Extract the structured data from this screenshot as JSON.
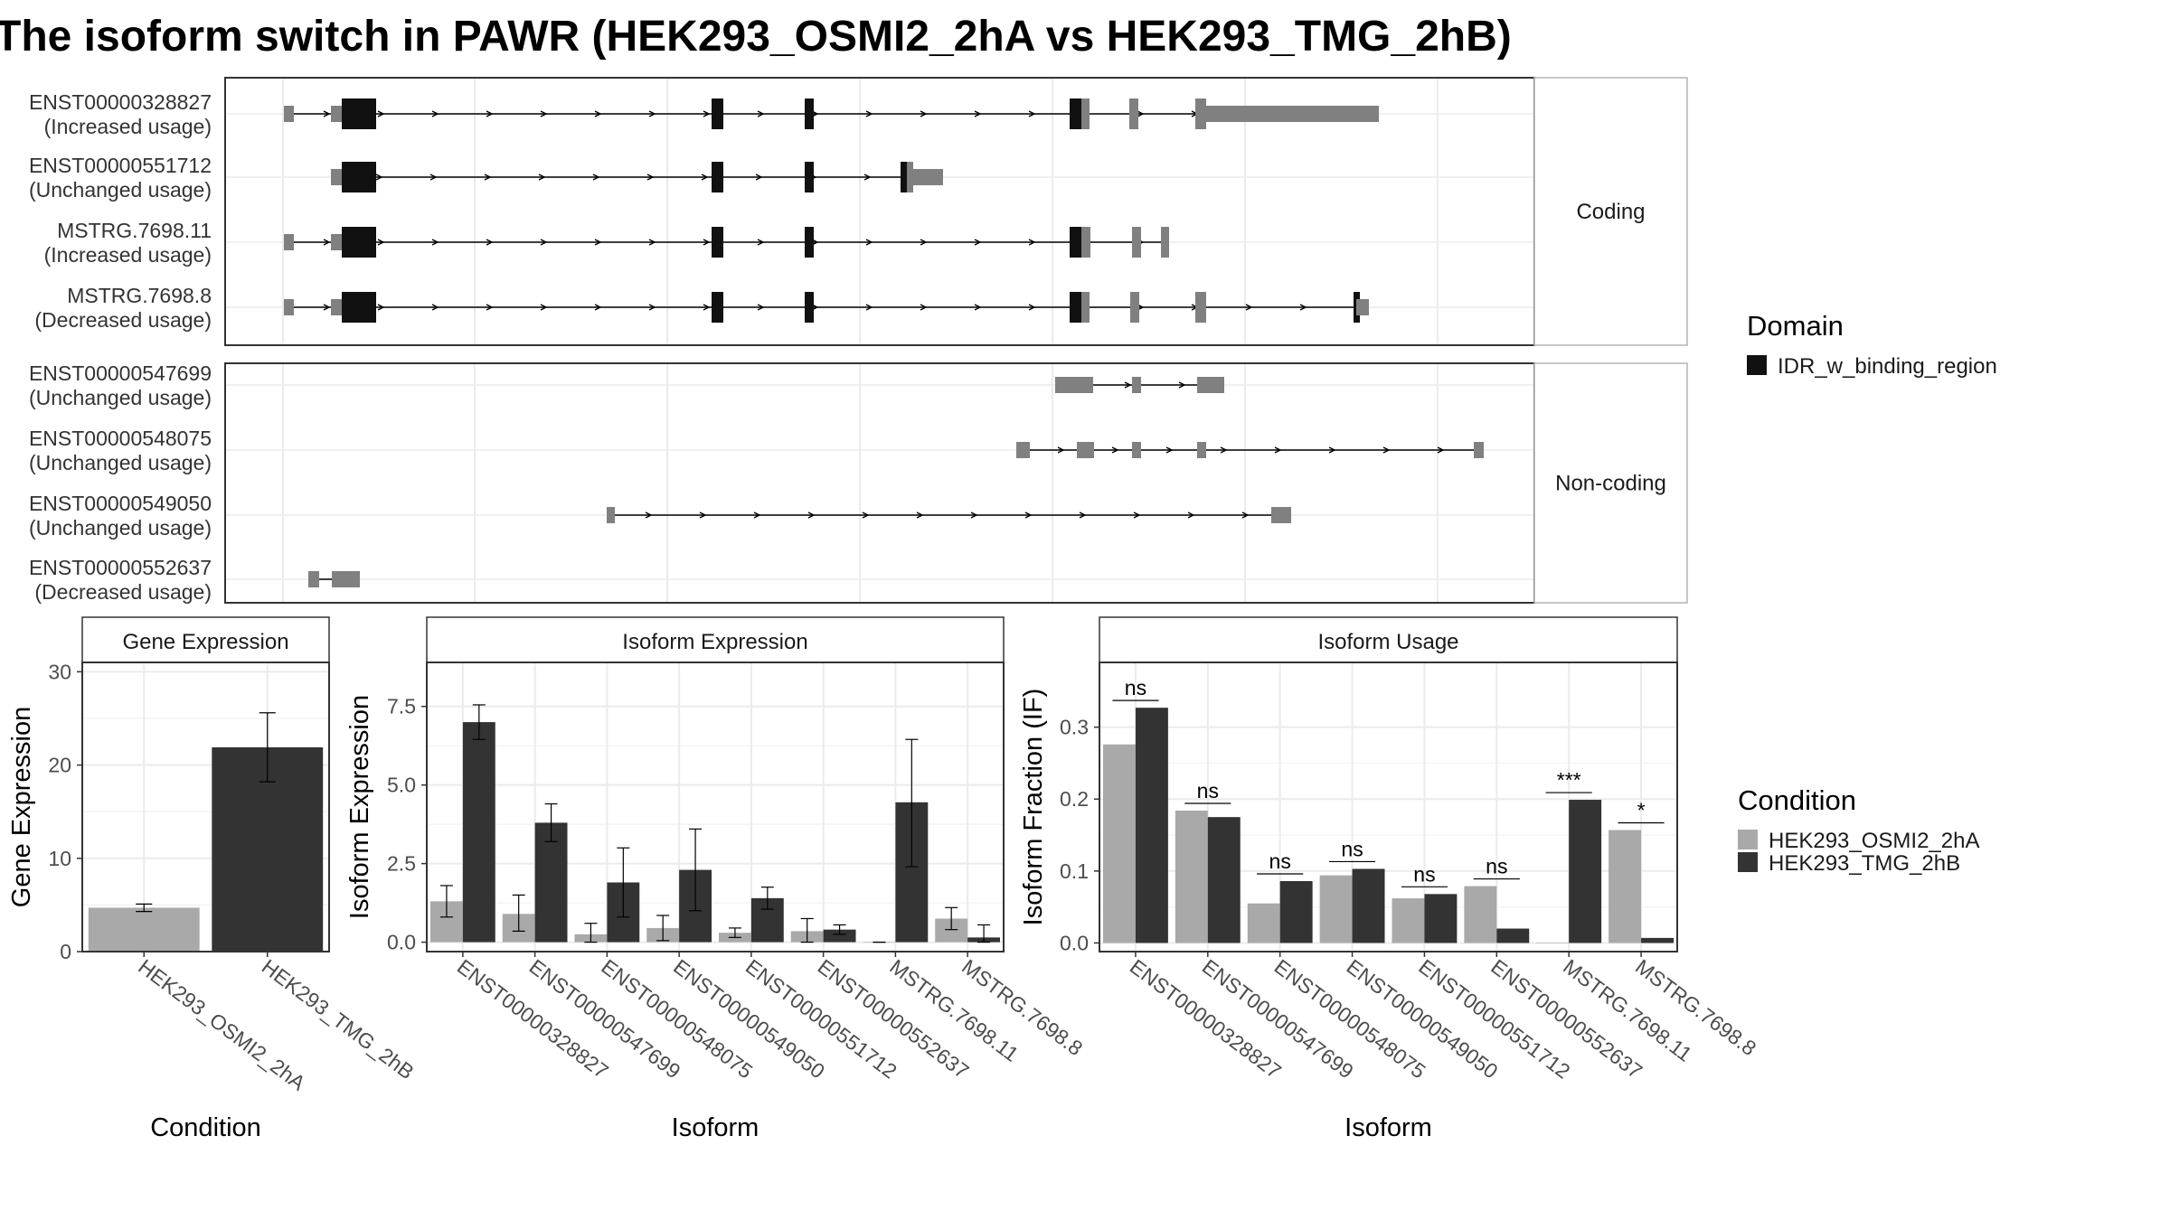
{
  "title": "The isoform switch in PAWR (HEK293_OSMI2_2hA vs HEK293_TMG_2hB)",
  "colors": {
    "cond_a": "#a9a9a9",
    "cond_b": "#333333",
    "exon": "#808080",
    "domain": "#111111",
    "grid": "#ebebeb",
    "strip": "#ffffff"
  },
  "transcript_panel": {
    "groups": [
      {
        "label": "Coding",
        "transcripts": [
          {
            "id": "ENST00000328827",
            "usage": "(Increased usage)"
          },
          {
            "id": "ENST00000551712",
            "usage": "(Unchanged usage)"
          },
          {
            "id": "MSTRG.7698.11",
            "usage": "(Increased usage)"
          },
          {
            "id": "MSTRG.7698.8",
            "usage": "(Decreased usage)"
          }
        ]
      },
      {
        "label": "Non-coding",
        "transcripts": [
          {
            "id": "ENST00000547699",
            "usage": "(Unchanged usage)"
          },
          {
            "id": "ENST00000548075",
            "usage": "(Unchanged usage)"
          },
          {
            "id": "ENST00000549050",
            "usage": "(Unchanged usage)"
          },
          {
            "id": "ENST00000552637",
            "usage": "(Decreased usage)"
          }
        ]
      }
    ],
    "legend": {
      "title": "Domain",
      "items": [
        {
          "label": "IDR_w_binding_region",
          "color": "#111111"
        }
      ]
    }
  },
  "chart_data": [
    {
      "type": "bar",
      "title": "Gene Expression",
      "xlabel": "Condition",
      "ylabel": "Gene Expression",
      "ylim": [
        0,
        31
      ],
      "yticks": [
        0,
        10,
        20,
        30
      ],
      "categories": [
        "HEK293_OSMI2_2hA",
        "HEK293_TMG_2hB"
      ],
      "values": [
        4.7,
        21.9
      ],
      "errors": [
        [
          4.3,
          5.1
        ],
        [
          18.2,
          25.6
        ]
      ]
    },
    {
      "type": "bar",
      "title": "Isoform Expression",
      "xlabel": "Isoform",
      "ylabel": "Isoform Expression",
      "ylim": [
        -0.3,
        8.9
      ],
      "yticks": [
        0.0,
        2.5,
        5.0,
        7.5
      ],
      "ytick_labels": [
        "0.0",
        "2.5",
        "5.0",
        "7.5"
      ],
      "categories": [
        "ENST00000328827",
        "ENST00000547699",
        "ENST00000548075",
        "ENST00000549050",
        "ENST00000551712",
        "ENST00000552637",
        "MSTRG.7698.11",
        "MSTRG.7698.8"
      ],
      "series": [
        {
          "name": "HEK293_OSMI2_2hA",
          "values": [
            1.3,
            0.9,
            0.25,
            0.45,
            0.3,
            0.35,
            0.0,
            0.75
          ],
          "errors": [
            [
              0.8,
              1.8
            ],
            [
              0.35,
              1.5
            ],
            [
              0.0,
              0.6
            ],
            [
              0.05,
              0.85
            ],
            [
              0.15,
              0.45
            ],
            [
              0.0,
              0.75
            ],
            [
              0.0,
              0.0
            ],
            [
              0.4,
              1.1
            ]
          ]
        },
        {
          "name": "HEK293_TMG_2hB",
          "values": [
            7.0,
            3.8,
            1.9,
            2.3,
            1.4,
            0.4,
            4.45,
            0.15
          ],
          "errors": [
            [
              6.45,
              7.55
            ],
            [
              3.2,
              4.4
            ],
            [
              0.8,
              3.0
            ],
            [
              1.0,
              3.6
            ],
            [
              1.05,
              1.75
            ],
            [
              0.25,
              0.55
            ],
            [
              2.4,
              6.45
            ],
            [
              0.0,
              0.55
            ]
          ]
        }
      ],
      "legend": {
        "title": "Condition",
        "position": "right"
      }
    },
    {
      "type": "bar",
      "title": "Isoform Usage",
      "xlabel": "Isoform",
      "ylabel": "Isoform Fraction (IF)",
      "ylim": [
        -0.012,
        0.39
      ],
      "yticks": [
        0.0,
        0.1,
        0.2,
        0.3
      ],
      "ytick_labels": [
        "0.0",
        "0.1",
        "0.2",
        "0.3"
      ],
      "categories": [
        "ENST00000328827",
        "ENST00000547699",
        "ENST00000548075",
        "ENST00000549050",
        "ENST00000551712",
        "ENST00000552637",
        "MSTRG.7698.11",
        "MSTRG.7698.8"
      ],
      "series": [
        {
          "name": "HEK293_OSMI2_2hA",
          "values": [
            0.276,
            0.184,
            0.055,
            0.094,
            0.062,
            0.079,
            0.0,
            0.157
          ]
        },
        {
          "name": "HEK293_TMG_2hB",
          "values": [
            0.327,
            0.175,
            0.086,
            0.103,
            0.068,
            0.02,
            0.199,
            0.007
          ]
        }
      ],
      "significance": [
        "ns",
        "ns",
        "ns",
        "ns",
        "ns",
        "ns",
        "***",
        "*"
      ]
    }
  ]
}
